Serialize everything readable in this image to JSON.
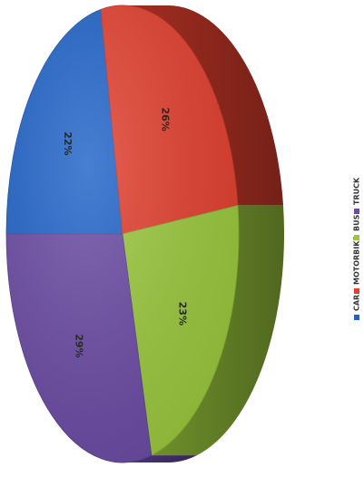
{
  "chart_data": {
    "type": "pie",
    "categories": [
      "CAR",
      "MOTORBIKE",
      "BUS",
      "TRUCK"
    ],
    "values": [
      22,
      26,
      23,
      29
    ],
    "labels": [
      "22%",
      "26%",
      "23%",
      "29%"
    ],
    "colors": [
      "#1f63c8",
      "#e23f2e",
      "#9ac83c",
      "#6a4aa4"
    ],
    "legend_position": "right",
    "legend_orientation": "vertical-rotated",
    "style": "3d",
    "rotation": "90deg-clockwise"
  }
}
